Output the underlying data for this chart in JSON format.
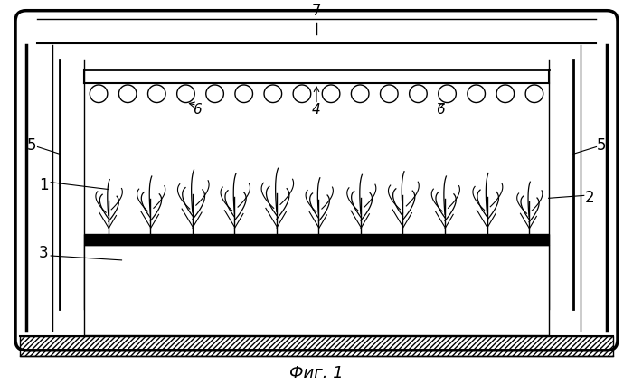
{
  "bg_color": "#ffffff",
  "line_color": "#000000",
  "title": "Фиг. 1",
  "num_lamps": 16,
  "num_plants": 11,
  "font_size": 12,
  "italic_font_size": 11
}
